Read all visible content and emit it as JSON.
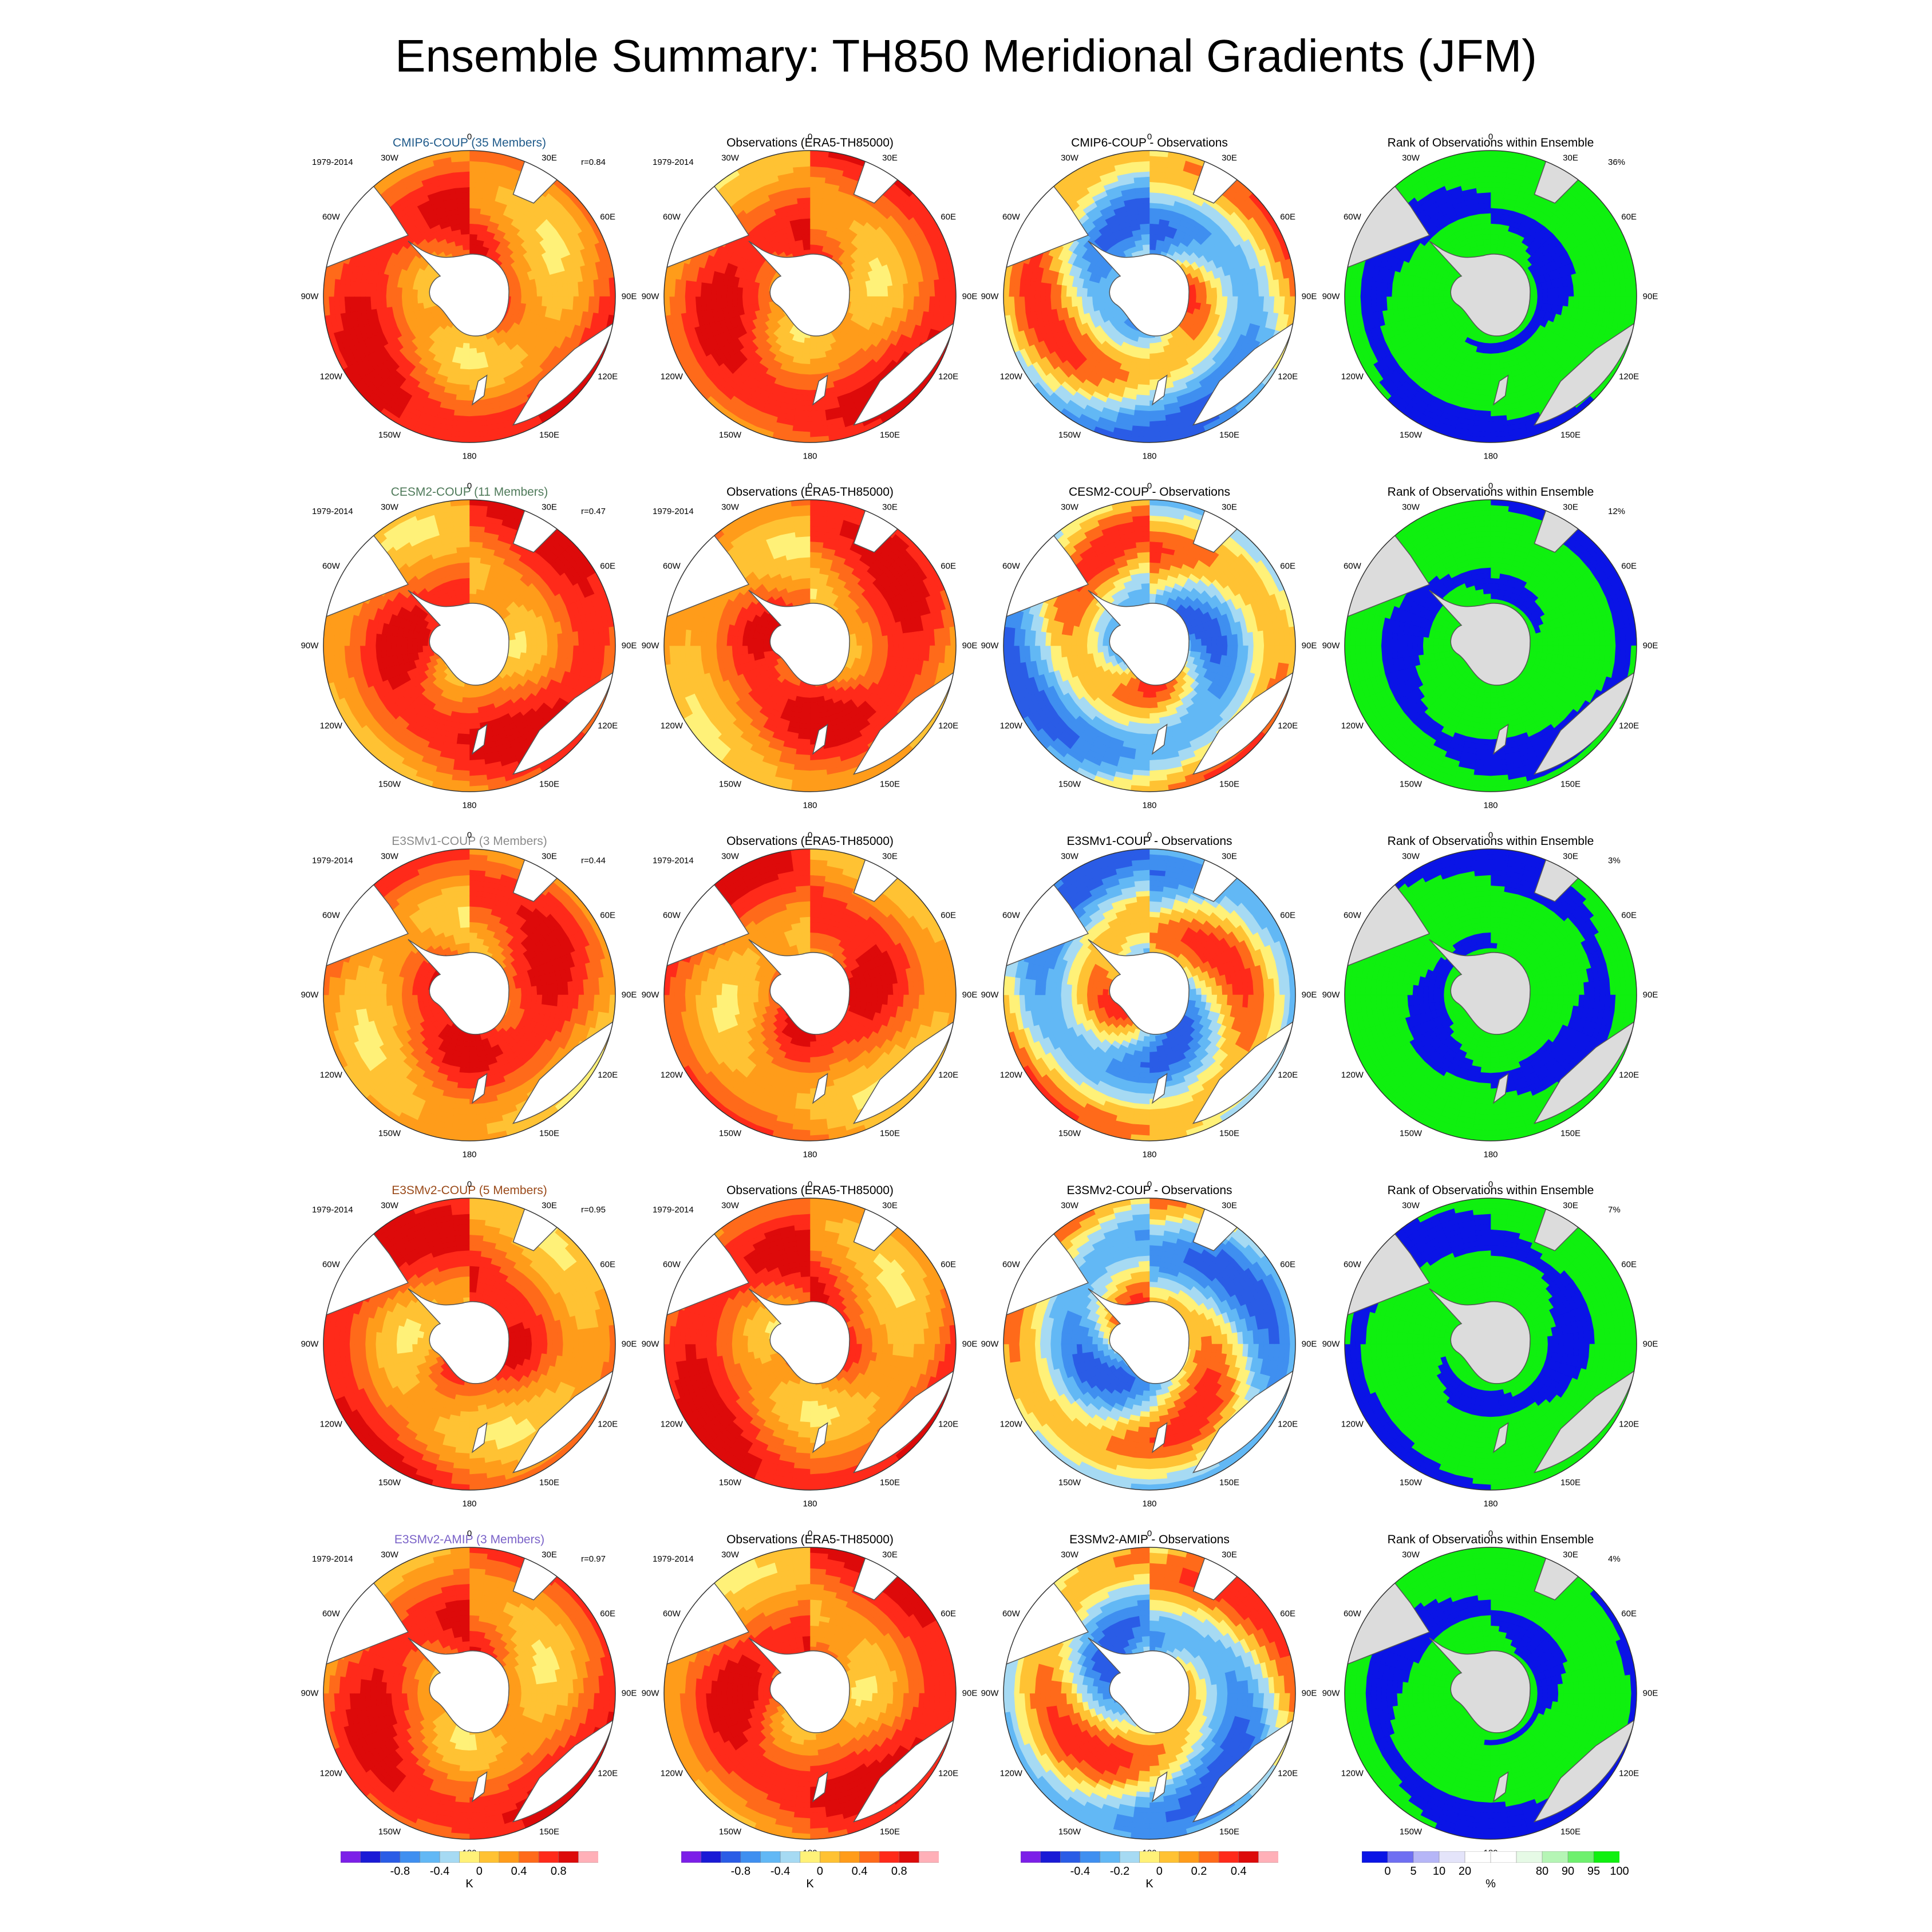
{
  "title": "Ensemble Summary: TH850 Meridional Gradients (JFM)",
  "chart_data": {
    "type": "heatmap",
    "projection": "south-polar-stereographic",
    "season": "JFM",
    "longitude_labels": [
      "0",
      "30E",
      "60E",
      "90E",
      "120E",
      "150E",
      "180",
      "150W",
      "120W",
      "90W",
      "60W",
      "30W"
    ],
    "columns": [
      {
        "kind": "ensemble-mean"
      },
      {
        "kind": "observations",
        "title": "Observations (ERA5-TH85000)"
      },
      {
        "kind": "difference"
      },
      {
        "kind": "rank",
        "title": "Rank of Observations within Ensemble"
      }
    ],
    "rows": [
      {
        "ensemble_title": "CMIP6-COUP (35 Members)",
        "title_color": "#1f5a8a",
        "period": "1979-2014",
        "pattern_correlation": "r=0.84",
        "diff_title": "CMIP6-COUP - Observations",
        "rank_percent": "36%"
      },
      {
        "ensemble_title": "CESM2-COUP (11 Members)",
        "title_color": "#4f7a5a",
        "period": "1979-2014",
        "pattern_correlation": "r=0.47",
        "diff_title": "CESM2-COUP - Observations",
        "rank_percent": "12%"
      },
      {
        "ensemble_title": "E3SMv1-COUP (3 Members)",
        "title_color": "#8a8a8a",
        "period": "1979-2014",
        "pattern_correlation": "r=0.44",
        "diff_title": "E3SMv1-COUP - Observations",
        "rank_percent": "3%"
      },
      {
        "ensemble_title": "E3SMv2-COUP (5 Members)",
        "title_color": "#9a4a1a",
        "period": "1979-2014",
        "pattern_correlation": "r=0.95",
        "diff_title": "E3SMv2-COUP - Observations",
        "rank_percent": "7%"
      },
      {
        "ensemble_title": "E3SMv2-AMIP (3 Members)",
        "title_color": "#7a62c8",
        "period": "1979-2014",
        "pattern_correlation": "r=0.97",
        "diff_title": "E3SMv2-AMIP - Observations",
        "rank_percent": "4%"
      }
    ],
    "colorbars": [
      {
        "unit": "K",
        "ticks": [
          "-0.8",
          "-0.4",
          "0",
          "0.4",
          "0.8"
        ],
        "colors": [
          "#7c1fe8",
          "#1a1ad6",
          "#2a5ce6",
          "#3f8ff0",
          "#62b8f5",
          "#a6daf3",
          "#fff178",
          "#ffc233",
          "#ff9c1a",
          "#ff6a1a",
          "#ff2a1a",
          "#dd0a0a",
          "#ffb0b8"
        ]
      },
      {
        "unit": "K",
        "ticks": [
          "-0.8",
          "-0.4",
          "0",
          "0.4",
          "0.8"
        ],
        "colors": [
          "#7c1fe8",
          "#1a1ad6",
          "#2a5ce6",
          "#3f8ff0",
          "#62b8f5",
          "#a6daf3",
          "#fff178",
          "#ffc233",
          "#ff9c1a",
          "#ff6a1a",
          "#ff2a1a",
          "#dd0a0a",
          "#ffb0b8"
        ]
      },
      {
        "unit": "K",
        "ticks": [
          "-0.4",
          "-0.2",
          "0",
          "0.2",
          "0.4"
        ],
        "colors": [
          "#7c1fe8",
          "#1a1ad6",
          "#2a5ce6",
          "#3f8ff0",
          "#62b8f5",
          "#a6daf3",
          "#fff178",
          "#ffc233",
          "#ff9c1a",
          "#ff6a1a",
          "#ff2a1a",
          "#dd0a0a",
          "#ffb0b8"
        ]
      },
      {
        "unit": "%",
        "ticks": [
          "0",
          "5",
          "10",
          "20",
          "80",
          "90",
          "95",
          "100"
        ],
        "colors": [
          "#0a14e6",
          "#6f6ff2",
          "#b6b6f7",
          "#e4e4fa",
          "#ffffff",
          "#ffffff",
          "#e6fae6",
          "#b5f5b5",
          "#6ef06e",
          "#0ff00f"
        ]
      }
    ]
  }
}
